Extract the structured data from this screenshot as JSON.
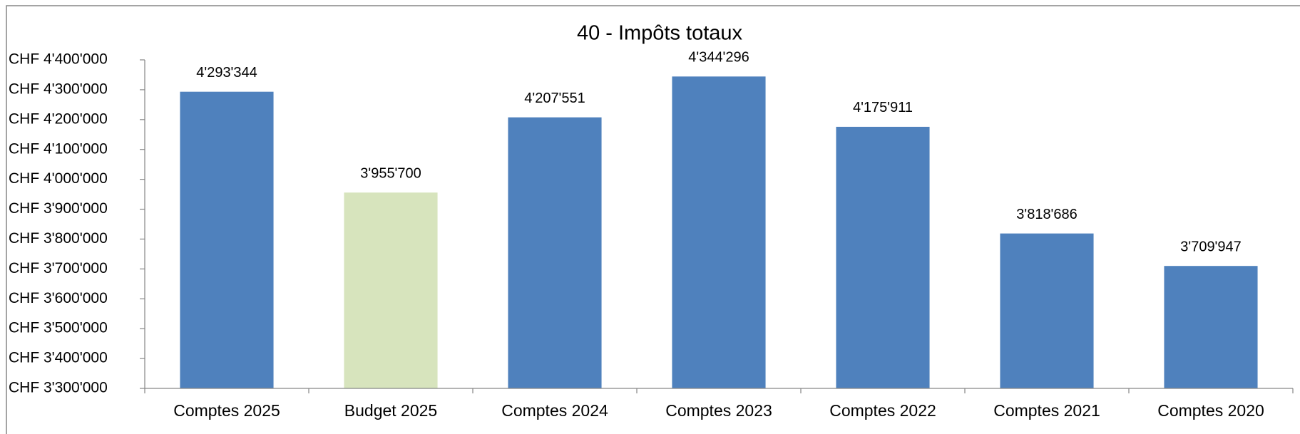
{
  "chart_data": {
    "type": "bar",
    "title": "40 - Impôts totaux",
    "categories": [
      "Comptes 2025",
      "Budget 2025",
      "Comptes 2024",
      "Comptes 2023",
      "Comptes 2022",
      "Comptes 2021",
      "Comptes 2020"
    ],
    "values": [
      4293344,
      3955700,
      4207551,
      4344296,
      4175911,
      3818686,
      3709947
    ],
    "value_labels": [
      "4'293'344",
      "3'955'700",
      "4'207'551",
      "4'344'296",
      "4'175'911",
      "3'818'686",
      "3'709'947"
    ],
    "colors": [
      "#4f81bd",
      "#d7e4bd",
      "#4f81bd",
      "#4f81bd",
      "#4f81bd",
      "#4f81bd",
      "#4f81bd"
    ],
    "ylim": [
      3300000,
      4400000
    ],
    "yticks": [
      {
        "value": 3300000,
        "label": "CHF 3'300'000"
      },
      {
        "value": 3400000,
        "label": "CHF 3'400'000"
      },
      {
        "value": 3500000,
        "label": "CHF 3'500'000"
      },
      {
        "value": 3600000,
        "label": "CHF 3'600'000"
      },
      {
        "value": 3700000,
        "label": "CHF 3'700'000"
      },
      {
        "value": 3800000,
        "label": "CHF 3'800'000"
      },
      {
        "value": 3900000,
        "label": "CHF 3'900'000"
      },
      {
        "value": 4000000,
        "label": "CHF 4'000'000"
      },
      {
        "value": 4100000,
        "label": "CHF 4'100'000"
      },
      {
        "value": 4200000,
        "label": "CHF 4'200'000"
      },
      {
        "value": 4300000,
        "label": "CHF 4'300'000"
      },
      {
        "value": 4400000,
        "label": "CHF 4'400'000"
      }
    ],
    "grid": false
  }
}
